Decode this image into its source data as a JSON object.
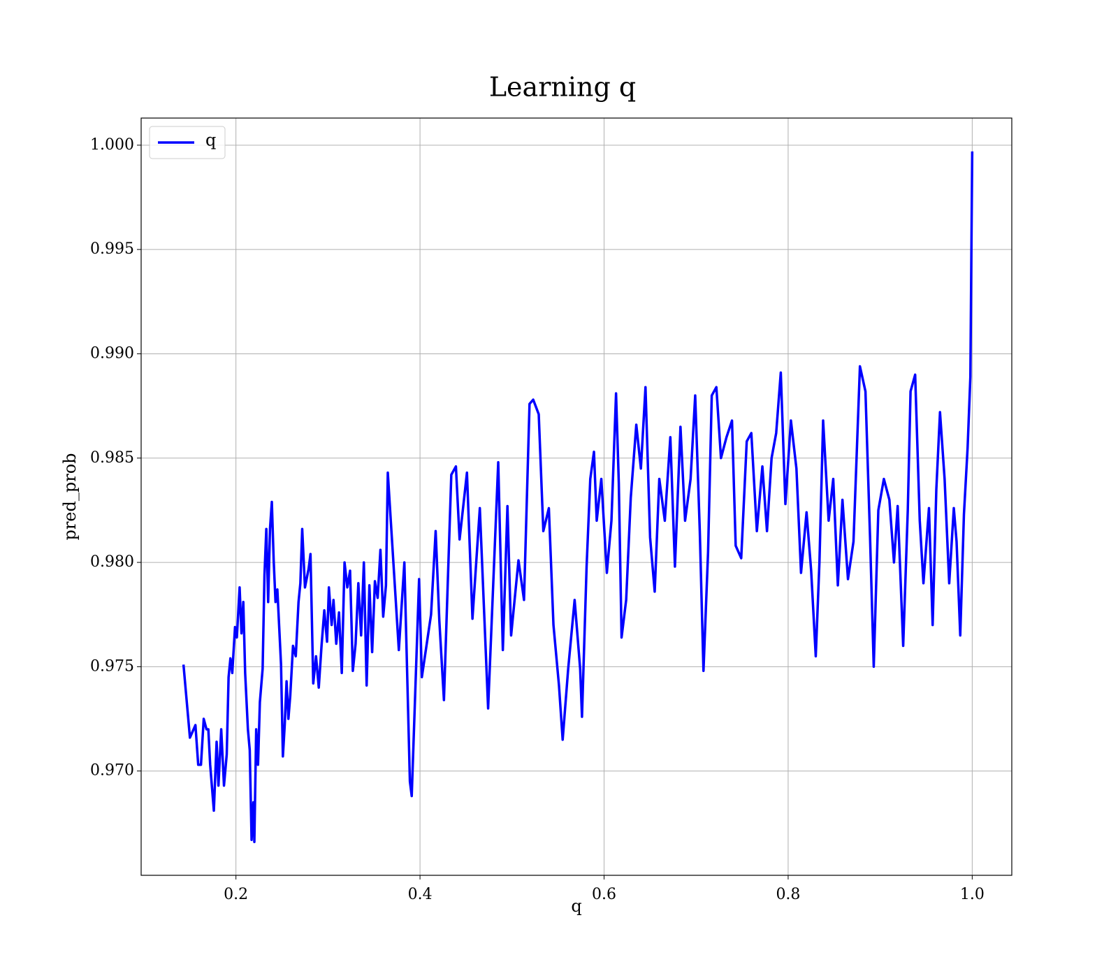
{
  "chart_data": {
    "type": "line",
    "title": "Learning q",
    "x_label": "q",
    "y_label": "pred_prob",
    "x": [
      0.143,
      0.147,
      0.15,
      0.156,
      0.159,
      0.162,
      0.165,
      0.168,
      0.17,
      0.172,
      0.176,
      0.179,
      0.181,
      0.184,
      0.187,
      0.19,
      0.192,
      0.194,
      0.196,
      0.199,
      0.201,
      0.204,
      0.206,
      0.208,
      0.21,
      0.213,
      0.215,
      0.217,
      0.219,
      0.22,
      0.222,
      0.224,
      0.226,
      0.229,
      0.231,
      0.233,
      0.235,
      0.237,
      0.239,
      0.241,
      0.243,
      0.245,
      0.247,
      0.249,
      0.251,
      0.253,
      0.255,
      0.257,
      0.259,
      0.262,
      0.265,
      0.268,
      0.27,
      0.272,
      0.275,
      0.279,
      0.281,
      0.284,
      0.287,
      0.29,
      0.293,
      0.296,
      0.299,
      0.301,
      0.304,
      0.306,
      0.309,
      0.312,
      0.315,
      0.318,
      0.321,
      0.324,
      0.327,
      0.33,
      0.333,
      0.336,
      0.339,
      0.342,
      0.345,
      0.348,
      0.351,
      0.354,
      0.357,
      0.36,
      0.363,
      0.365,
      0.377,
      0.383,
      0.389,
      0.391,
      0.399,
      0.402,
      0.412,
      0.417,
      0.421,
      0.426,
      0.434,
      0.439,
      0.443,
      0.451,
      0.457,
      0.465,
      0.474,
      0.485,
      0.49,
      0.495,
      0.499,
      0.507,
      0.513,
      0.519,
      0.523,
      0.529,
      0.534,
      0.54,
      0.545,
      0.551,
      0.555,
      0.561,
      0.568,
      0.574,
      0.576,
      0.581,
      0.585,
      0.589,
      0.592,
      0.597,
      0.603,
      0.608,
      0.613,
      0.616,
      0.619,
      0.624,
      0.629,
      0.635,
      0.64,
      0.645,
      0.65,
      0.655,
      0.66,
      0.666,
      0.672,
      0.677,
      0.683,
      0.688,
      0.694,
      0.699,
      0.704,
      0.708,
      0.713,
      0.717,
      0.722,
      0.727,
      0.733,
      0.739,
      0.743,
      0.749,
      0.755,
      0.76,
      0.766,
      0.772,
      0.777,
      0.782,
      0.787,
      0.792,
      0.797,
      0.803,
      0.809,
      0.814,
      0.82,
      0.825,
      0.83,
      0.834,
      0.838,
      0.844,
      0.849,
      0.854,
      0.859,
      0.865,
      0.871,
      0.878,
      0.884,
      0.889,
      0.893,
      0.898,
      0.904,
      0.91,
      0.915,
      0.919,
      0.925,
      0.93,
      0.933,
      0.938,
      0.943,
      0.947,
      0.953,
      0.957,
      0.961,
      0.965,
      0.97,
      0.975,
      0.98,
      0.983,
      0.987,
      0.991,
      0.995,
      0.998,
      1.0
    ],
    "series": [
      {
        "name": "q",
        "color": "#0000ff",
        "values": [
          0.9751,
          0.9731,
          0.9716,
          0.9722,
          0.9703,
          0.9703,
          0.9725,
          0.972,
          0.972,
          0.9703,
          0.9681,
          0.9714,
          0.9693,
          0.972,
          0.9693,
          0.9708,
          0.9745,
          0.9754,
          0.9747,
          0.9769,
          0.9764,
          0.9788,
          0.9766,
          0.9781,
          0.9747,
          0.972,
          0.971,
          0.9667,
          0.9685,
          0.9666,
          0.972,
          0.9703,
          0.9733,
          0.9749,
          0.9794,
          0.9816,
          0.9781,
          0.9816,
          0.9829,
          0.9801,
          0.9781,
          0.9787,
          0.9769,
          0.9751,
          0.9707,
          0.9722,
          0.9743,
          0.9725,
          0.9736,
          0.976,
          0.9755,
          0.9781,
          0.979,
          0.9816,
          0.9788,
          0.9797,
          0.9804,
          0.9742,
          0.9755,
          0.974,
          0.976,
          0.9777,
          0.9762,
          0.9788,
          0.977,
          0.9782,
          0.9761,
          0.9776,
          0.9747,
          0.98,
          0.9788,
          0.9796,
          0.9748,
          0.9761,
          0.979,
          0.9765,
          0.98,
          0.9741,
          0.9789,
          0.9757,
          0.9791,
          0.9783,
          0.9806,
          0.9774,
          0.9789,
          0.9843,
          0.9758,
          0.98,
          0.9695,
          0.9688,
          0.9792,
          0.9745,
          0.9775,
          0.9815,
          0.9772,
          0.9734,
          0.9842,
          0.9846,
          0.9811,
          0.9843,
          0.9773,
          0.9826,
          0.973,
          0.9848,
          0.9758,
          0.9827,
          0.9765,
          0.9801,
          0.9782,
          0.9876,
          0.9878,
          0.9871,
          0.9815,
          0.9826,
          0.977,
          0.9741,
          0.9715,
          0.9749,
          0.9782,
          0.9749,
          0.9726,
          0.9798,
          0.984,
          0.9853,
          0.982,
          0.984,
          0.9795,
          0.982,
          0.9881,
          0.9838,
          0.9764,
          0.9782,
          0.9831,
          0.9866,
          0.9845,
          0.9884,
          0.9812,
          0.9786,
          0.984,
          0.982,
          0.986,
          0.9798,
          0.9865,
          0.982,
          0.984,
          0.988,
          0.9815,
          0.9748,
          0.9805,
          0.988,
          0.9884,
          0.985,
          0.986,
          0.9868,
          0.9808,
          0.9802,
          0.9858,
          0.9862,
          0.9815,
          0.9846,
          0.9815,
          0.985,
          0.9862,
          0.9891,
          0.9828,
          0.9868,
          0.9845,
          0.9795,
          0.9824,
          0.9796,
          0.9755,
          0.98,
          0.9868,
          0.982,
          0.984,
          0.9789,
          0.983,
          0.9792,
          0.981,
          0.9894,
          0.9882,
          0.9812,
          0.975,
          0.9825,
          0.984,
          0.983,
          0.98,
          0.9827,
          0.976,
          0.9825,
          0.9882,
          0.989,
          0.982,
          0.979,
          0.9826,
          0.977,
          0.9835,
          0.9872,
          0.984,
          0.979,
          0.9826,
          0.981,
          0.9765,
          0.9823,
          0.9855,
          0.9889,
          0.9997
        ]
      }
    ],
    "xlim": [
      0.097,
      1.043
    ],
    "ylim": [
      0.965,
      1.0013
    ],
    "xticks": [
      0.2,
      0.4,
      0.6,
      0.8,
      {
        "value": 1.0,
        "label": "1.0"
      }
    ],
    "yticks": [
      {
        "value": 0.97,
        "label": "0.970"
      },
      0.975,
      {
        "value": 0.98,
        "label": "0.980"
      },
      0.985,
      {
        "value": 0.99,
        "label": "0.990"
      },
      0.995,
      {
        "value": 1.0,
        "label": "1.000"
      }
    ],
    "grid": true,
    "legend": "upper left"
  }
}
